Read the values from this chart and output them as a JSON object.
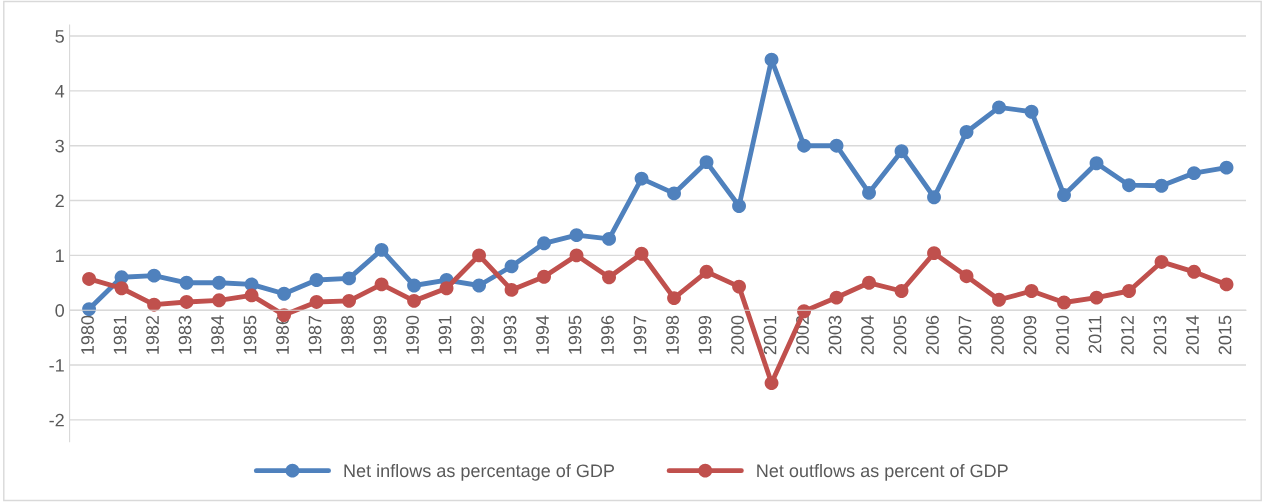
{
  "chart_data": {
    "type": "line",
    "categories": [
      "1980",
      "1981",
      "1982",
      "1983",
      "1984",
      "1985",
      "1986",
      "1987",
      "1988",
      "1989",
      "1990",
      "1991",
      "1992",
      "1993",
      "1994",
      "1995",
      "1996",
      "1997",
      "1998",
      "1999",
      "2000",
      "2001",
      "2002",
      "2003",
      "2004",
      "2005",
      "2006",
      "2007",
      "2008",
      "2009",
      "2010",
      "2011",
      "2012",
      "2013",
      "2014",
      "2015"
    ],
    "series": [
      {
        "name": "Net inflows as percentage of GDP",
        "color": "#4f81bd",
        "values": [
          0.02,
          0.6,
          0.63,
          0.5,
          0.5,
          0.47,
          0.3,
          0.55,
          0.58,
          1.1,
          0.45,
          0.55,
          0.45,
          0.8,
          1.22,
          1.37,
          1.3,
          2.4,
          2.13,
          2.7,
          1.9,
          4.57,
          3.0,
          3.0,
          2.14,
          2.9,
          2.06,
          3.25,
          3.7,
          3.62,
          2.1,
          2.68,
          2.28,
          2.27,
          2.5,
          2.6
        ]
      },
      {
        "name": "Net outflows as percent of GDP",
        "color": "#c0504d",
        "values": [
          0.57,
          0.4,
          0.1,
          0.15,
          0.18,
          0.27,
          -0.09,
          0.15,
          0.17,
          0.47,
          0.17,
          0.4,
          1.0,
          0.37,
          0.61,
          1.0,
          0.6,
          1.03,
          0.22,
          0.7,
          0.43,
          -1.33,
          -0.02,
          0.23,
          0.5,
          0.35,
          1.04,
          0.62,
          0.19,
          0.35,
          0.14,
          0.23,
          0.35,
          0.88,
          0.7,
          0.47
        ]
      }
    ],
    "ylim": [
      -2.4,
      5.2
    ],
    "yticks": [
      {
        "value": -2,
        "label": "-2"
      },
      {
        "value": -1,
        "label": "-1"
      },
      0,
      1,
      2,
      3,
      4,
      5
    ],
    "grid": "y",
    "legend": "bottom",
    "marker": "circle",
    "line_style": "solid"
  }
}
